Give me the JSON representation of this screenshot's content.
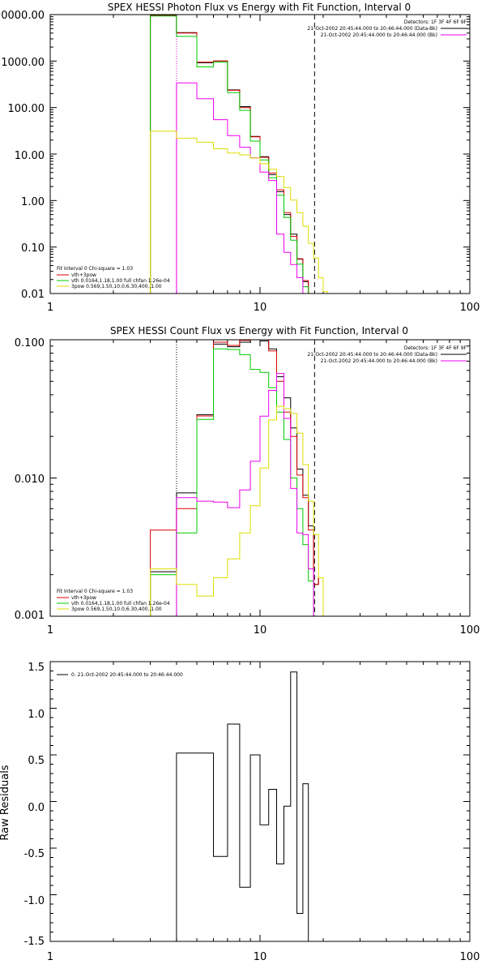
{
  "colors": {
    "data": "#000000",
    "fit": "#dd0000",
    "vth": "#00cc00",
    "pow": "#dddd00",
    "bk": "#ee00ee",
    "axis": "#000000"
  },
  "chart_data": [
    {
      "type": "line",
      "title": "SPEX HESSI Photon Flux vs Energy with Fit Function, Interval 0",
      "xlabel": "",
      "ylabel": "",
      "xscale": "log",
      "yscale": "log",
      "xlim": [
        1,
        100
      ],
      "ylim": [
        0.01,
        10000
      ],
      "xticks": [
        "1",
        "10",
        "100"
      ],
      "yticks": [
        "10000.00",
        "1000.00",
        "100.00",
        "10.00",
        "1.00",
        "0.10",
        "0.01"
      ],
      "annotations": [
        "Detectors: 1F 3F 4F 6F 9F",
        "21-Oct-2002 20:45:44.000 to 20:46:44.000 (Data-Bk)",
        "21-Oct-2002 20:45:44.000 to 20:46:44.000 (Bk)"
      ],
      "legend": [
        "Fit Interval 0   Chi-square = 1.03",
        "vth+3pow",
        "vth 0.0164,1.18,1.00  full chfan 1.26e-04",
        "3pow 0.569,1.50,10.0,6.30,400.,1.00"
      ],
      "vlines": [
        {
          "x": 4,
          "color": "#ee00ee",
          "style": "dotted"
        },
        {
          "x": 18.2,
          "color": "#000000",
          "style": "dashed"
        }
      ],
      "edges": [
        3,
        4,
        5,
        6,
        7,
        8,
        9,
        10,
        11,
        12,
        13,
        14,
        15,
        16,
        17,
        18,
        19,
        20,
        21
      ],
      "series": [
        {
          "key": "data",
          "values": [
            9600,
            4100,
            920,
            1000,
            240,
            105,
            24,
            8.8,
            3.6,
            1.55,
            0.5,
            0.19,
            0.055,
            0.018,
            null,
            null,
            null,
            null
          ]
        },
        {
          "key": "fit",
          "values": [
            9500,
            4000,
            950,
            1010,
            235,
            100,
            23.5,
            8.5,
            3.9,
            1.7,
            0.55,
            0.17,
            0.056,
            0.019,
            null,
            null,
            null,
            null
          ]
        },
        {
          "key": "vth",
          "values": [
            9300,
            3400,
            750,
            950,
            210,
            87,
            19,
            7.5,
            3.1,
            1.3,
            0.43,
            0.14,
            0.043,
            0.014,
            null,
            null,
            null,
            null
          ]
        },
        {
          "key": "bk",
          "values": [
            null,
            340,
            155,
            55,
            25,
            14,
            8.3,
            4.1,
            2.7,
            0.19,
            0.077,
            0.042,
            0.022,
            null,
            null,
            null,
            null,
            null
          ]
        },
        {
          "key": "pow",
          "values": [
            31,
            22,
            18,
            13,
            10.5,
            9.6,
            8.2,
            6.2,
            4.7,
            3.3,
            1.9,
            1.02,
            0.55,
            0.28,
            0.12,
            0.058,
            0.022,
            0.011
          ]
        }
      ]
    },
    {
      "type": "line",
      "title": "SPEX HESSI Count Flux vs Energy with Fit Function, Interval 0",
      "xlabel": "",
      "ylabel": "",
      "xscale": "log",
      "yscale": "log",
      "xlim": [
        1,
        100
      ],
      "ylim": [
        0.001,
        0.1
      ],
      "xticks": [
        "1",
        "10",
        "100"
      ],
      "yticks": [
        "0.100",
        "0.010",
        "0.001"
      ],
      "annotations": [
        "Detectors: 1F 3F 4F 6F 9F",
        "21-Oct-2002 20:45:44.000 to 20:46:44.000 (Data-Bk)",
        "21-Oct-2002 20:45:44.000 to 20:46:44.000 (Bk)"
      ],
      "legend": [
        "Fit Interval 0   Chi-square = 1.03",
        "vth+3pow",
        "vth 0.0164,1.18,1.00  full chfan 1.26e-04",
        "3pow 0.569,1.50,10.0,6.30,400.,1.00"
      ],
      "vlines": [
        {
          "x": 4,
          "color": "#000000",
          "style": "dotted"
        },
        {
          "x": 18.2,
          "color": "#000000",
          "style": "dashed"
        }
      ],
      "edges": [
        3,
        4,
        5,
        6,
        7,
        8,
        9,
        10,
        11,
        12,
        13,
        14,
        15,
        16,
        17,
        18,
        19,
        20
      ],
      "series": [
        {
          "key": "data",
          "values": [
            0.0021,
            0.0078,
            0.0287,
            0.093,
            0.089,
            0.096,
            0.1,
            0.098,
            0.086,
            0.054,
            0.038,
            0.023,
            0.0116,
            0.0075,
            0.0045,
            0.0017,
            0.0019
          ]
        },
        {
          "key": "fit",
          "values": [
            0.0042,
            0.006,
            0.0281,
            0.096,
            0.091,
            0.099,
            0.105,
            0.105,
            0.083,
            0.05,
            0.03,
            0.02,
            0.0105,
            0.0072,
            0.0042,
            0.0017,
            0.0019
          ]
        },
        {
          "key": "vth",
          "values": [
            0.002,
            0.004,
            0.0265,
            0.086,
            0.085,
            0.078,
            0.061,
            0.058,
            0.045,
            0.03,
            0.019,
            0.01,
            0.006,
            0.0033,
            0.0018,
            null,
            null
          ]
        },
        {
          "key": "bk",
          "values": [
            null,
            0.0072,
            0.0068,
            0.0067,
            0.0061,
            0.0082,
            0.0132,
            0.028,
            0.043,
            0.057,
            0.027,
            0.0084,
            0.004,
            0.0039,
            0.0022,
            null,
            null
          ]
        },
        {
          "key": "pow",
          "values": [
            0.0022,
            0.0017,
            0.0014,
            0.0019,
            0.0026,
            0.004,
            0.0063,
            0.0118,
            0.0263,
            0.033,
            0.0317,
            0.0293,
            0.0211,
            0.0125,
            0.0068,
            0.0039,
            0.0019
          ]
        }
      ]
    },
    {
      "type": "line",
      "title": "",
      "xlabel": "",
      "ylabel": "Raw Residuals",
      "xscale": "log",
      "yscale": "linear",
      "xlim": [
        1,
        100
      ],
      "ylim": [
        -1.5,
        1.5
      ],
      "xticks": [
        "1",
        "10",
        "100"
      ],
      "yticks": [
        "1.5",
        "1.0",
        "0.5",
        "0.0",
        "-0.5",
        "-1.0",
        "-1.5"
      ],
      "legend": [
        "0. 21-Oct-2002 20:45:44.000 to 20:46:44.000"
      ],
      "edges": [
        4,
        5,
        6,
        7,
        8,
        9,
        10,
        11,
        12,
        13,
        14,
        15,
        16,
        17,
        18
      ],
      "series": [
        {
          "key": "data",
          "values": [
            0.52,
            0.52,
            -0.59,
            0.83,
            -0.92,
            0.5,
            -0.25,
            0.13,
            -0.67,
            -0.05,
            1.39,
            -1.2,
            0.19,
            null
          ]
        }
      ]
    }
  ]
}
